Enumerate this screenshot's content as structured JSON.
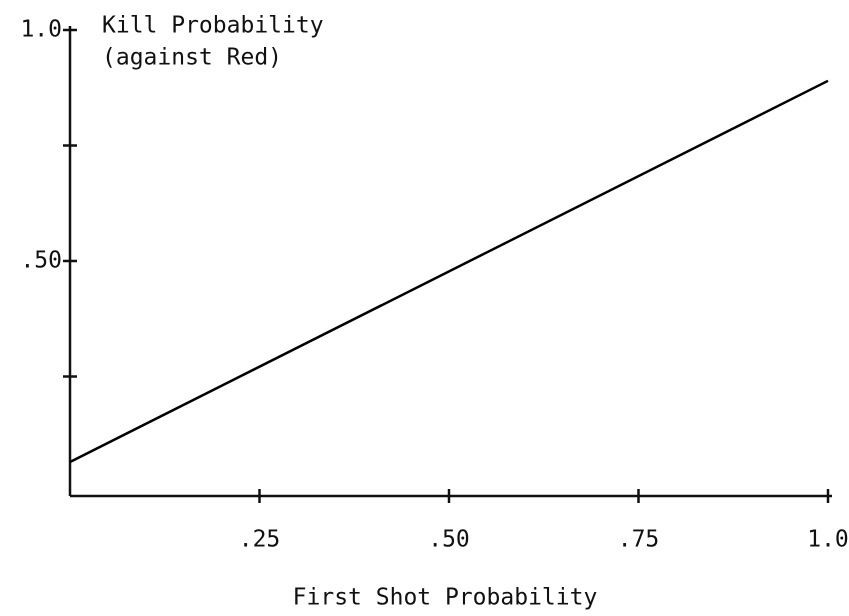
{
  "chart_data": {
    "type": "line",
    "y_label": [
      "Kill Probability",
      "(against Red)"
    ],
    "x_label": "First Shot Probability",
    "x": [
      0,
      1.0
    ],
    "series": [
      {
        "values": [
          0.065,
          0.89
        ],
        "color": "#000000"
      }
    ],
    "xlim": [
      0,
      1.0
    ],
    "xticks": [
      {
        "value": 0.25,
        "label": ".25"
      },
      {
        "value": 0.5,
        "label": ".50"
      },
      {
        "value": 0.75,
        "label": ".75"
      },
      {
        "value": 1.0,
        "label": "1.0"
      }
    ],
    "ylim": [
      0,
      1.0
    ],
    "yticks": [
      {
        "value": 0.5,
        "label": ".50"
      },
      {
        "value": 1.0,
        "label": "1.0"
      }
    ],
    "yminorticks": [
      0.25,
      0.75
    ],
    "grid": false
  }
}
